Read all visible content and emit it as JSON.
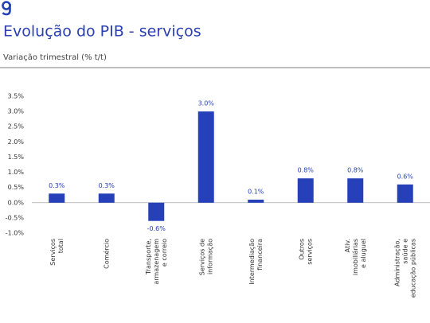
{
  "chart_data": {
    "type": "bar",
    "title": "Evolução do PIB - serviços",
    "subtitle": "Variação trimestral (% t/t)",
    "categories": [
      [
        "Serviços",
        "total"
      ],
      [
        "Comércio"
      ],
      [
        "Transporte,",
        "armazenagem",
        "e correio"
      ],
      [
        "Serviços de",
        "informação"
      ],
      [
        "Intermediação",
        "financeira"
      ],
      [
        "Outros",
        "serviços"
      ],
      [
        "Ativ.",
        "imobiliárias",
        "e aluguel"
      ],
      [
        "Administração,",
        "saúde e",
        "educação públicas"
      ]
    ],
    "values": [
      0.3,
      0.3,
      -0.6,
      3.0,
      0.1,
      0.8,
      0.8,
      0.6
    ],
    "value_labels": [
      "0.3%",
      "0.3%",
      "-0.6%",
      "3.0%",
      "0.1%",
      "0.8%",
      "0.8%",
      "0.6%"
    ],
    "color": "#2540b8",
    "ylim": [
      -1.0,
      3.5
    ],
    "yticks": [
      {
        "value": -1.0,
        "label": "-1.0%"
      },
      {
        "value": -0.5,
        "label": "-0.5%"
      },
      {
        "value": 0,
        "label": "0.0%"
      },
      {
        "value": 0.5,
        "label": "0.5%"
      },
      {
        "value": 1.0,
        "label": "1.0%"
      },
      {
        "value": 1.5,
        "label": "1.5%"
      },
      {
        "value": 2.0,
        "label": "2.0%"
      },
      {
        "value": 2.5,
        "label": "2.5%"
      },
      {
        "value": 3.0,
        "label": "3.0%"
      },
      {
        "value": 3.5,
        "label": "3.5%"
      }
    ],
    "grid": false
  }
}
